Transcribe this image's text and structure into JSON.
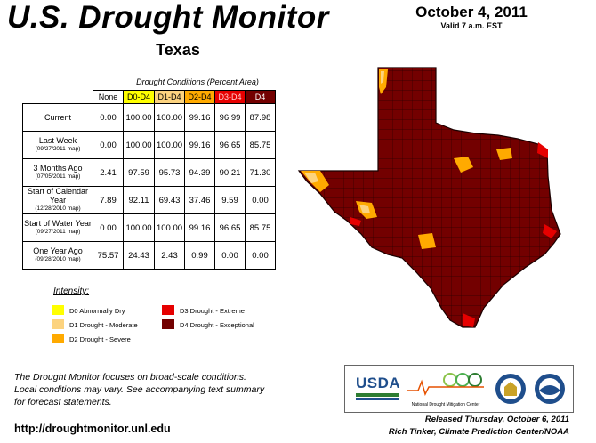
{
  "header": {
    "title": "U.S. Drought Monitor",
    "state": "Texas",
    "date": "October 4, 2011",
    "valid": "Valid 7 a.m. EST"
  },
  "table": {
    "caption": "Drought Conditions (Percent Area)",
    "columns": [
      "None",
      "D0-D4",
      "D1-D4",
      "D2-D4",
      "D3-D4",
      "D4"
    ],
    "rows": [
      {
        "label": "Current",
        "sub": "",
        "values": [
          "0.00",
          "100.00",
          "100.00",
          "99.16",
          "96.99",
          "87.98"
        ]
      },
      {
        "label": "Last Week",
        "sub": "(09/27/2011 map)",
        "values": [
          "0.00",
          "100.00",
          "100.00",
          "99.16",
          "96.65",
          "85.75"
        ]
      },
      {
        "label": "3 Months Ago",
        "sub": "(07/05/2011 map)",
        "values": [
          "2.41",
          "97.59",
          "95.73",
          "94.39",
          "90.21",
          "71.30"
        ]
      },
      {
        "label": "Start of Calendar Year",
        "sub": "(12/28/2010 map)",
        "values": [
          "7.89",
          "92.11",
          "69.43",
          "37.46",
          "9.59",
          "0.00"
        ]
      },
      {
        "label": "Start of Water Year",
        "sub": "(09/27/2011 map)",
        "values": [
          "0.00",
          "100.00",
          "100.00",
          "99.16",
          "96.65",
          "85.75"
        ]
      },
      {
        "label": "One Year Ago",
        "sub": "(09/28/2010 map)",
        "values": [
          "75.57",
          "24.43",
          "2.43",
          "0.99",
          "0.00",
          "0.00"
        ]
      }
    ]
  },
  "legend": {
    "title": "Intensity:",
    "items": [
      {
        "label": "D0 Abnormally Dry",
        "color": "#ffff00"
      },
      {
        "label": "D1 Drought - Moderate",
        "color": "#fcd37f"
      },
      {
        "label": "D2 Drought - Severe",
        "color": "#ffaa00"
      },
      {
        "label": "D3 Drought - Extreme",
        "color": "#e60000"
      },
      {
        "label": "D4 Drought - Exceptional",
        "color": "#730000"
      }
    ]
  },
  "note": {
    "line1": "The Drought Monitor focuses on broad-scale conditions.",
    "line2": "Local conditions may vary. See accompanying text summary",
    "line3": "for forecast statements."
  },
  "url": "http://droughtmonitor.unl.edu",
  "logos": {
    "usda": "USDA",
    "ndmc": "National Drought Mitigation Center"
  },
  "released": {
    "line1": "Released Thursday, October 6, 2011",
    "line2": "Rich Tinker, Climate Prediction Center/NOAA"
  }
}
